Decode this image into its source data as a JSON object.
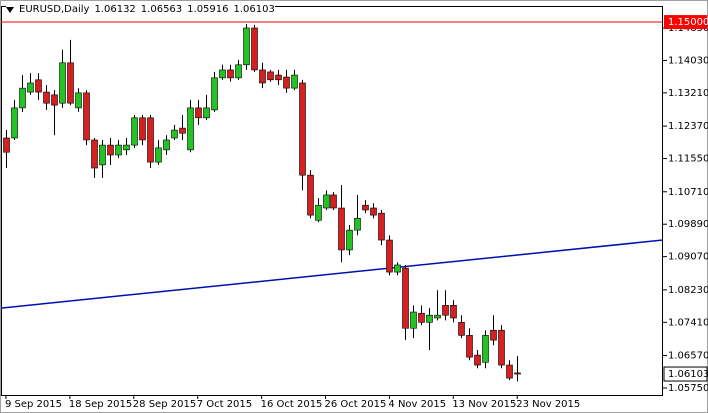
{
  "chart_data": {
    "type": "candlestick",
    "title": "EURUSD,Daily",
    "up_color": "#22c322",
    "down_color": "#d42020",
    "ohlc": [
      [
        1.1207,
        1.1227,
        1.1131,
        1.1171
      ],
      [
        1.1207,
        1.1303,
        1.1202,
        1.1283
      ],
      [
        1.1283,
        1.1366,
        1.1273,
        1.1333
      ],
      [
        1.1323,
        1.1371,
        1.1316,
        1.1346
      ],
      [
        1.1354,
        1.1371,
        1.1303,
        1.1323
      ],
      [
        1.1323,
        1.1341,
        1.1278,
        1.1295
      ],
      [
        1.1316,
        1.1328,
        1.1214,
        1.129
      ],
      [
        1.1295,
        1.143,
        1.1283,
        1.1397
      ],
      [
        1.1397,
        1.1455,
        1.129,
        1.1295
      ],
      [
        1.1283,
        1.1333,
        1.1273,
        1.1321
      ],
      [
        1.1321,
        1.1328,
        1.1189,
        1.1202
      ],
      [
        1.1202,
        1.1207,
        1.1106,
        1.1131
      ],
      [
        1.1139,
        1.1202,
        1.1106,
        1.1189
      ],
      [
        1.1189,
        1.1207,
        1.1139,
        1.1164
      ],
      [
        1.1164,
        1.1202,
        1.1156,
        1.1189
      ],
      [
        1.1177,
        1.1207,
        1.1164,
        1.1189
      ],
      [
        1.1189,
        1.1265,
        1.1182,
        1.1258
      ],
      [
        1.1258,
        1.1265,
        1.1189,
        1.1202
      ],
      [
        1.1258,
        1.1265,
        1.1131,
        1.1146
      ],
      [
        1.1146,
        1.1202,
        1.1139,
        1.1182
      ],
      [
        1.1177,
        1.1214,
        1.1164,
        1.1202
      ],
      [
        1.1207,
        1.124,
        1.1202,
        1.1227
      ],
      [
        1.1232,
        1.1265,
        1.1202,
        1.1219
      ],
      [
        1.1177,
        1.1303,
        1.1171,
        1.1283
      ],
      [
        1.1283,
        1.1303,
        1.124,
        1.1258
      ],
      [
        1.1258,
        1.1316,
        1.1252,
        1.1283
      ],
      [
        1.1278,
        1.1374,
        1.1273,
        1.1359
      ],
      [
        1.1359,
        1.1392,
        1.1354,
        1.1379
      ],
      [
        1.1379,
        1.1392,
        1.1349,
        1.1359
      ],
      [
        1.1359,
        1.1404,
        1.1354,
        1.1392
      ],
      [
        1.1392,
        1.1495,
        1.1379,
        1.1485
      ],
      [
        1.1485,
        1.1493,
        1.1374,
        1.1379
      ],
      [
        1.1379,
        1.1397,
        1.1333,
        1.1346
      ],
      [
        1.1374,
        1.1379,
        1.1349,
        1.1354
      ],
      [
        1.1366,
        1.1379,
        1.1341,
        1.1354
      ],
      [
        1.1361,
        1.1379,
        1.1321,
        1.1333
      ],
      [
        1.1333,
        1.1379,
        1.1328,
        1.1366
      ],
      [
        1.1346,
        1.1354,
        1.1075,
        1.1113
      ],
      [
        1.1113,
        1.1126,
        1.1004,
        1.1012
      ],
      [
        1.0999,
        1.1055,
        1.0994,
        1.1037
      ],
      [
        1.103,
        1.1075,
        1.1025,
        1.1063
      ],
      [
        1.1063,
        1.107,
        1.1025,
        1.103
      ],
      [
        1.103,
        1.1088,
        1.0893,
        1.0924
      ],
      [
        1.0924,
        1.0987,
        1.0911,
        1.0974
      ],
      [
        1.0974,
        1.1063,
        1.0961,
        1.1004
      ],
      [
        1.1037,
        1.105,
        1.1017,
        1.1025
      ],
      [
        1.103,
        1.1042,
        1.1004,
        1.1012
      ],
      [
        1.1017,
        1.1025,
        1.0936,
        1.0949
      ],
      [
        1.0949,
        1.0961,
        1.086,
        1.0868
      ],
      [
        1.0868,
        1.0893,
        1.086,
        1.0886
      ],
      [
        1.0878,
        1.0886,
        1.0696,
        1.0726
      ],
      [
        1.0726,
        1.0784,
        1.0701,
        1.0767
      ],
      [
        1.0764,
        1.0784,
        1.0734,
        1.0741
      ],
      [
        1.0741,
        1.0777,
        1.0671,
        1.0759
      ],
      [
        1.0752,
        1.0822,
        1.0746,
        1.0759
      ],
      [
        1.0784,
        1.0822,
        1.0746,
        1.0759
      ],
      [
        1.0784,
        1.0797,
        1.0741,
        1.0752
      ],
      [
        1.0741,
        1.0759,
        1.0701,
        1.0708
      ],
      [
        1.0708,
        1.0726,
        1.0645,
        1.0653
      ],
      [
        1.0658,
        1.0671,
        1.0625,
        1.0633
      ],
      [
        1.064,
        1.0721,
        1.0625,
        1.0708
      ],
      [
        1.0721,
        1.0759,
        1.0683,
        1.0696
      ],
      [
        1.0721,
        1.0734,
        1.0625,
        1.0633
      ],
      [
        1.0633,
        1.0645,
        1.0595,
        1.06
      ],
      [
        1.06132,
        1.06563,
        1.05916,
        1.06103
      ]
    ],
    "xlim": [
      -0.625,
      82.25
    ],
    "xticks": [
      {
        "value": 0,
        "label": "9 Sep 2015"
      },
      {
        "value": 8,
        "label": "18 Sep 2015"
      },
      {
        "value": 16,
        "label": "28 Sep 2015"
      },
      {
        "value": 24,
        "label": "7 Oct 2015"
      },
      {
        "value": 32,
        "label": "16 Oct 2015"
      },
      {
        "value": 40,
        "label": "26 Oct 2015"
      },
      {
        "value": 48,
        "label": "4 Nov 2015"
      },
      {
        "value": 56,
        "label": "13 Nov 2015"
      },
      {
        "value": 64,
        "label": "23 Nov 2015"
      }
    ],
    "ylim": [
      1.05573,
      1.15406
    ],
    "yticks": [
      {
        "value": 1.0575,
        "label": "1.05750"
      },
      {
        "value": 1.0657,
        "label": "1.06570"
      },
      {
        "value": 1.0741,
        "label": "1.07410"
      },
      {
        "value": 1.0823,
        "label": "1.08230"
      },
      {
        "value": 1.0907,
        "label": "1.09070"
      },
      {
        "value": 1.0989,
        "label": "1.09890"
      },
      {
        "value": 1.1071,
        "label": "1.10710"
      },
      {
        "value": 1.1155,
        "label": "1.11550"
      },
      {
        "value": 1.1237,
        "label": "1.12370"
      },
      {
        "value": 1.1321,
        "label": "1.13210"
      },
      {
        "value": 1.1403,
        "label": "1.14030"
      },
      {
        "value": 1.1485,
        "label": "1.14850"
      }
    ],
    "hline": {
      "value": 1.15,
      "label": "1.15000",
      "color": "#ff0000"
    },
    "trendline": {
      "x": [
        -0.625,
        82.25
      ],
      "values": [
        1.0777,
        1.0949
      ],
      "color": "#0010b0"
    }
  }
}
